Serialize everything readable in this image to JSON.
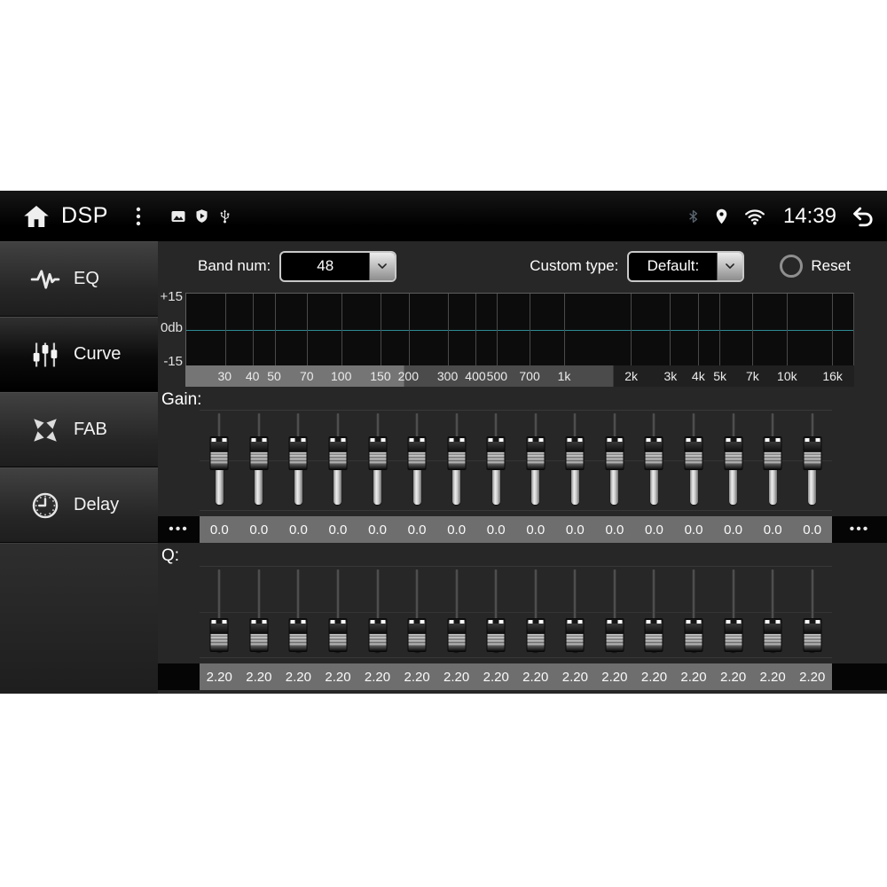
{
  "status_bar": {
    "title": "DSP",
    "time": "14:39"
  },
  "sidebar": {
    "items": [
      {
        "label": "EQ",
        "icon": "waveform-icon",
        "selected": false
      },
      {
        "label": "Curve",
        "icon": "mixer-sliders-icon",
        "selected": true
      },
      {
        "label": "FAB",
        "icon": "fader-arrows-icon",
        "selected": false
      },
      {
        "label": "Delay",
        "icon": "clock-icon",
        "selected": false
      }
    ]
  },
  "controls": {
    "band_num": {
      "label": "Band num:",
      "value": "48"
    },
    "custom_type": {
      "label": "Custom type:",
      "value": "Default:"
    },
    "reset": {
      "label": "Reset",
      "selected": false
    }
  },
  "graph": {
    "y_axis_labels": [
      "+15",
      "0db",
      "-15"
    ],
    "ylim": [
      -15,
      15
    ],
    "frequencies": [
      30,
      40,
      50,
      70,
      100,
      150,
      200,
      300,
      400,
      500,
      700,
      1000,
      2000,
      3000,
      4000,
      5000,
      7000,
      10000,
      16000
    ],
    "frequency_labels": [
      "30",
      "40",
      "50",
      "70",
      "100",
      "150",
      "200",
      "300",
      "400",
      "500",
      "700",
      "1k",
      "2k",
      "3k",
      "4k",
      "5k",
      "7k",
      "10k",
      "16k"
    ],
    "curve_db": 0,
    "curve_color": "#2e8a94"
  },
  "gain": {
    "label": "Gain:",
    "values": [
      "0.0",
      "0.0",
      "0.0",
      "0.0",
      "0.0",
      "0.0",
      "0.0",
      "0.0",
      "0.0",
      "0.0",
      "0.0",
      "0.0",
      "0.0",
      "0.0",
      "0.0",
      "0.0"
    ],
    "thumb_pct": 44,
    "more_left": "•••",
    "more_right": "•••"
  },
  "q": {
    "label": "Q:",
    "values": [
      "2.20",
      "2.20",
      "2.20",
      "2.20",
      "2.20",
      "2.20",
      "2.20",
      "2.20",
      "2.20",
      "2.20",
      "2.20",
      "2.20",
      "2.20",
      "2.20",
      "2.20",
      "2.20"
    ],
    "thumb_pct": 80
  },
  "colors": {
    "content_bg": "#272727",
    "plot_bg": "#0c0c0c",
    "value_strip_bg": "#6e6e6e",
    "accent_teal": "#2e8a94"
  }
}
